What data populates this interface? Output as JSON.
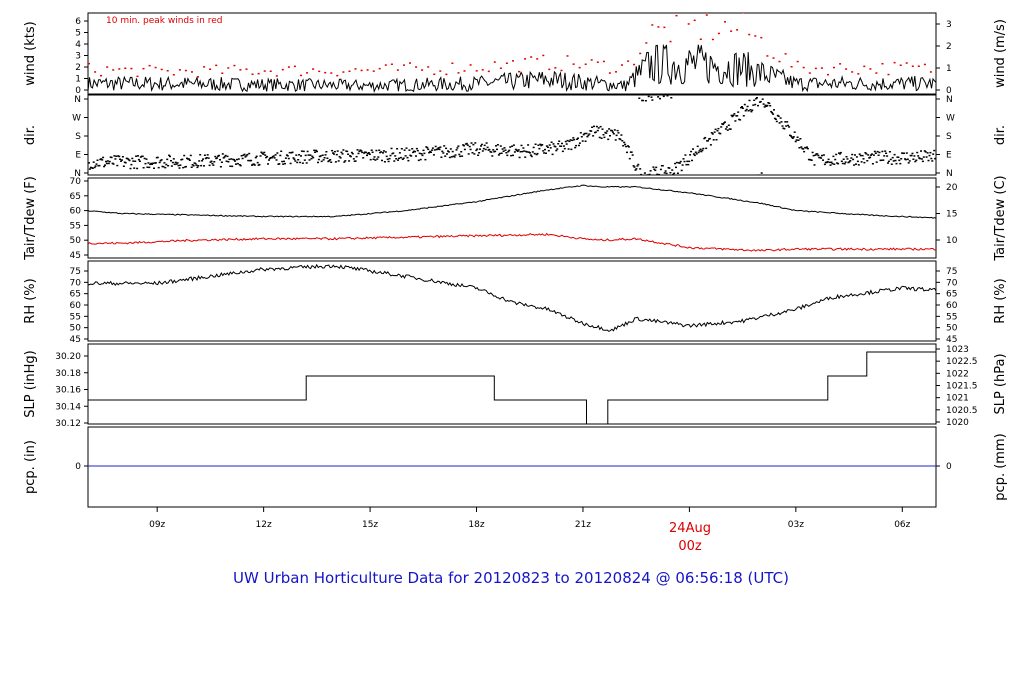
{
  "title": "UW Urban Horticulture Data for 20120823  to  20120824 @ 06:56:18  (UTC)",
  "x_axis": {
    "tick_labels": [
      "09z",
      "12z",
      "15z",
      "18z",
      "21z",
      "03z",
      "06z"
    ],
    "tick_hours": [
      9,
      12,
      15,
      18,
      21,
      27,
      30
    ],
    "day_label": "24Aug",
    "day_sublabel": "00z",
    "day_hour": 24,
    "range_hours": [
      7.05,
      30.95
    ]
  },
  "colors": {
    "line": "#000000",
    "dew": "#e00000",
    "peak": "#e00000",
    "pcp": "#2222cc",
    "title": "#1515c8"
  },
  "chart_data": [
    {
      "type": "line",
      "name": "wind",
      "ylabel_left": "wind (kts)",
      "ylabel_right": "wind (m/s)",
      "annotation": "10 min. peak winds in red",
      "ylim": [
        0,
        7
      ],
      "left_ticks": [
        "0",
        "1",
        "2",
        "3",
        "4",
        "5",
        "6"
      ],
      "right_ticks": [
        "0",
        "1",
        "2",
        "3"
      ],
      "x": [
        7.0,
        9,
        12,
        15,
        18,
        20,
        22.2,
        22.9,
        24,
        25.5,
        27,
        30,
        31
      ],
      "values": [
        1.0,
        1.0,
        0.9,
        0.8,
        1.0,
        1.4,
        0.8,
        2.8,
        2.9,
        2.5,
        1.0,
        1.0,
        1.0
      ],
      "peaks": [
        2.2,
        2.0,
        2.1,
        2.1,
        2.4,
        2.8,
        2.4,
        5.3,
        5.8,
        5.7,
        2.3,
        2.3,
        2.2
      ]
    },
    {
      "type": "scatter",
      "name": "dir",
      "ylabel_left": "dir.",
      "ylabel_right": "dir.",
      "ylim": [
        0,
        360
      ],
      "left_ticks": [
        "N",
        "E",
        "S",
        "W",
        "N"
      ],
      "right_ticks": [
        "N",
        "E",
        "S",
        "W",
        "N"
      ],
      "x": [
        7.0,
        10,
        13,
        16,
        18,
        19.5,
        20.5,
        21.2,
        22.0,
        22.6,
        23.5,
        26,
        27.5,
        29,
        31
      ],
      "values": [
        60,
        65,
        85,
        95,
        120,
        110,
        130,
        200,
        180,
        5,
        20,
        355,
        70,
        80,
        85
      ]
    },
    {
      "type": "line",
      "name": "Tair/Tdew",
      "ylabel_left": "Tair/Tdew (F)",
      "ylabel_right": "Tair/Tdew (C)",
      "ylim": [
        43.5,
        70.5
      ],
      "left_ticks": [
        "45",
        "50",
        "55",
        "60",
        "65",
        "70"
      ],
      "right_ticks": [
        "10",
        "15",
        "20"
      ],
      "x": [
        7.0,
        8,
        10,
        12,
        14,
        16,
        18,
        20,
        21,
        21.5,
        22.5,
        24,
        26,
        27,
        29,
        31
      ],
      "series": [
        {
          "values": [
            59.5,
            58.5,
            58.0,
            57.5,
            57.5,
            59.5,
            62.5,
            66.5,
            68.0,
            67.5,
            67.5,
            65.5,
            62.0,
            59.5,
            58.0,
            57.0
          ]
        },
        {
          "values": [
            48.5,
            48.5,
            49.5,
            50.0,
            50.0,
            50.5,
            51.0,
            51.5,
            50.0,
            49.5,
            50.0,
            47.0,
            46.0,
            46.5,
            46.5,
            46.5
          ]
        }
      ]
    },
    {
      "type": "line",
      "name": "RH",
      "ylabel_left": "RH (%)",
      "ylabel_right": "RH (%)",
      "ylim": [
        44.5,
        78.5
      ],
      "left_ticks": [
        "45",
        "50",
        "55",
        "60",
        "65",
        "70",
        "75"
      ],
      "right_ticks": [
        "45",
        "50",
        "55",
        "60",
        "65",
        "70",
        "75"
      ],
      "x": [
        7.0,
        9,
        10.5,
        12,
        14,
        16,
        18,
        19,
        20,
        21,
        21.8,
        22.5,
        24,
        25.5,
        27,
        28,
        30,
        31
      ],
      "values": [
        69,
        69,
        72,
        75,
        76.5,
        72,
        67,
        61,
        58,
        52,
        49,
        54,
        51,
        53,
        58,
        63,
        67,
        66
      ]
    },
    {
      "type": "line",
      "name": "SLP",
      "ylabel_left": "SLP (inHg)",
      "ylabel_right": "SLP (hPa)",
      "ylim": [
        30.12,
        30.22
      ],
      "left_ticks": [
        "30.12",
        "30.14",
        "30.16",
        "30.18",
        "30.20"
      ],
      "right_ticks": [
        "1020",
        "1020.5",
        "1021",
        "1021.5",
        "1022",
        "1022.5",
        "1023"
      ],
      "x": [
        7.0,
        13.2,
        13.2,
        18.5,
        18.5,
        21.1,
        21.1,
        21.7,
        21.7,
        27.9,
        27.9,
        29.0,
        29.0,
        31.0
      ],
      "values": [
        30.15,
        30.15,
        30.18,
        30.18,
        30.15,
        30.15,
        30.12,
        30.12,
        30.15,
        30.15,
        30.18,
        30.18,
        30.21,
        30.21
      ]
    },
    {
      "type": "line",
      "name": "pcp",
      "ylabel_left": "pcp. (in)",
      "ylabel_right": "pcp. (mm)",
      "ylim": [
        -1,
        1
      ],
      "left_ticks": [
        "0"
      ],
      "right_ticks": [
        "0"
      ],
      "x": [
        7.0,
        31.0
      ],
      "values": [
        0,
        0
      ]
    }
  ]
}
